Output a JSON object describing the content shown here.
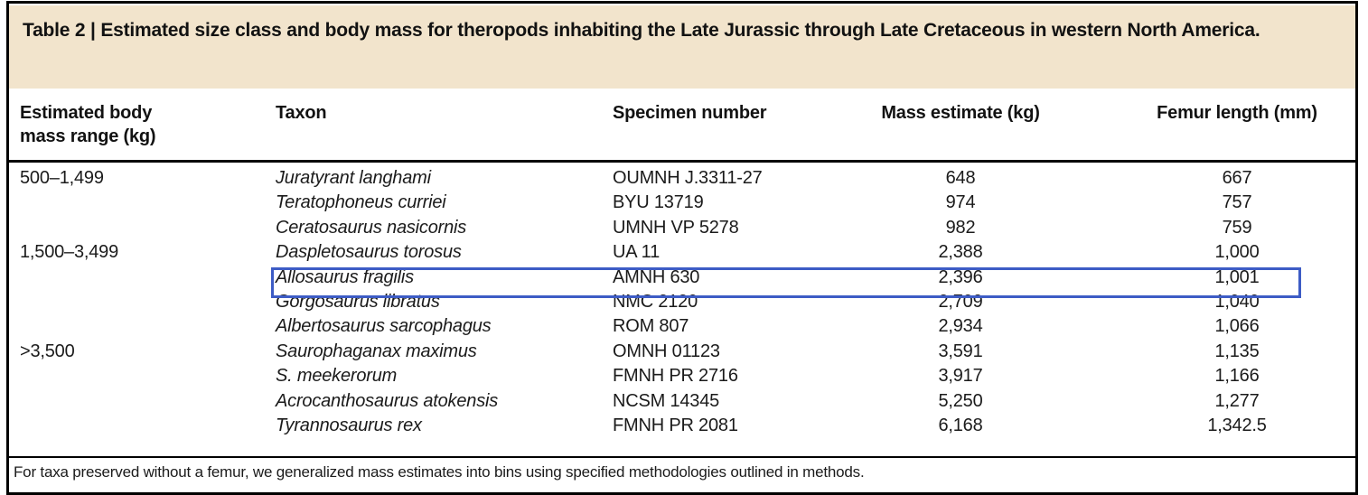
{
  "table": {
    "title": "Table 2 | Estimated size class and body mass for theropods inhabiting the Late Jurassic through Late Cretaceous in western North America.",
    "columns": [
      "Estimated body mass range (kg)",
      "Taxon",
      "Specimen number",
      "Mass estimate (kg)",
      "Femur length (mm)"
    ],
    "rows": [
      {
        "mass_range": "500–1,499",
        "taxon": "Juratyrant langhami",
        "specimen": "OUMNH J.3311-27",
        "mass": "648",
        "femur": "667",
        "highlighted": false
      },
      {
        "mass_range": "",
        "taxon": "Teratophoneus curriei",
        "specimen": "BYU 13719",
        "mass": "974",
        "femur": "757",
        "highlighted": false
      },
      {
        "mass_range": "",
        "taxon": "Ceratosaurus nasicornis",
        "specimen": "UMNH VP 5278",
        "mass": "982",
        "femur": "759",
        "highlighted": false
      },
      {
        "mass_range": "1,500–3,499",
        "taxon": "Daspletosaurus torosus",
        "specimen": "UA 11",
        "mass": "2,388",
        "femur": "1,000",
        "highlighted": false
      },
      {
        "mass_range": "",
        "taxon": "Allosaurus fragilis",
        "specimen": "AMNH 630",
        "mass": "2,396",
        "femur": "1,001",
        "highlighted": true
      },
      {
        "mass_range": "",
        "taxon": "Gorgosaurus libratus",
        "specimen": "NMC 2120",
        "mass": "2,709",
        "femur": "1,040",
        "highlighted": false
      },
      {
        "mass_range": "",
        "taxon": "Albertosaurus sarcophagus",
        "specimen": "ROM 807",
        "mass": "2,934",
        "femur": "1,066",
        "highlighted": false
      },
      {
        "mass_range": ">3,500",
        "taxon": "Saurophaganax maximus",
        "specimen": "OMNH 01123",
        "mass": "3,591",
        "femur": "1,135",
        "highlighted": false
      },
      {
        "mass_range": "",
        "taxon": "S. meekerorum",
        "specimen": "FMNH PR 2716",
        "mass": "3,917",
        "femur": "1,166",
        "highlighted": false
      },
      {
        "mass_range": "",
        "taxon": "Acrocanthosaurus atokensis",
        "specimen": "NCSM 14345",
        "mass": "5,250",
        "femur": "1,277",
        "highlighted": false
      },
      {
        "mass_range": "",
        "taxon": "Tyrannosaurus rex",
        "specimen": "FMNH PR 2081",
        "mass": "6,168",
        "femur": "1,342.5",
        "highlighted": false
      }
    ],
    "footnote": "For taxa preserved without a femur, we generalized mass estimates into bins using specified methodologies outlined in methods.",
    "colors": {
      "title_band": "#f2e4cc",
      "highlight_box": "#3d5cc5",
      "border": "#000000"
    }
  }
}
